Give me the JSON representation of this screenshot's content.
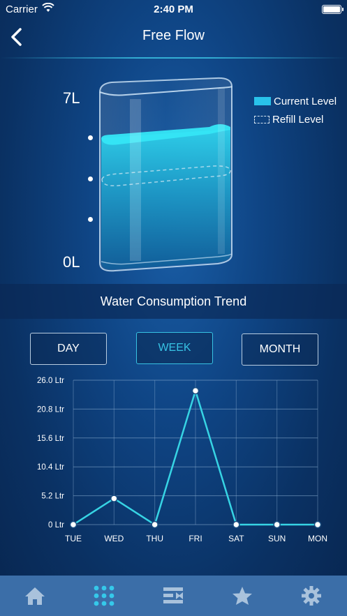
{
  "status_bar": {
    "carrier": "Carrier",
    "time": "2:40 PM"
  },
  "nav": {
    "title": "Free Flow"
  },
  "tank": {
    "max_label": "7L",
    "min_label": "0L",
    "legend": {
      "current": "Current Level",
      "refill": "Refill Level"
    },
    "current_level_fraction": 0.72,
    "refill_level_fraction": 0.5,
    "colors": {
      "water": "#29c2ea"
    }
  },
  "section": {
    "title": "Water Consumption Trend"
  },
  "periods": {
    "day": "DAY",
    "week": "WEEK",
    "month": "MONTH",
    "selected": "week"
  },
  "chart_data": {
    "type": "line",
    "categories": [
      "TUE",
      "WED",
      "THU",
      "FRI",
      "SAT",
      "SUN",
      "MON"
    ],
    "series": [
      {
        "values": [
          0,
          4.7,
          0,
          24.1,
          0,
          0,
          0
        ]
      }
    ],
    "yticks": [
      "0 Ltr",
      "5.2 Ltr",
      "10.4 Ltr",
      "15.6 Ltr",
      "20.8 Ltr",
      "26.0 Ltr"
    ],
    "ylim": [
      0,
      26
    ],
    "grid": true,
    "color": "#37d4e4"
  },
  "tabs": [
    {
      "icon": "home-icon"
    },
    {
      "icon": "grid-icon"
    },
    {
      "icon": "filter-icon"
    },
    {
      "icon": "star-icon"
    },
    {
      "icon": "gear-icon"
    }
  ]
}
